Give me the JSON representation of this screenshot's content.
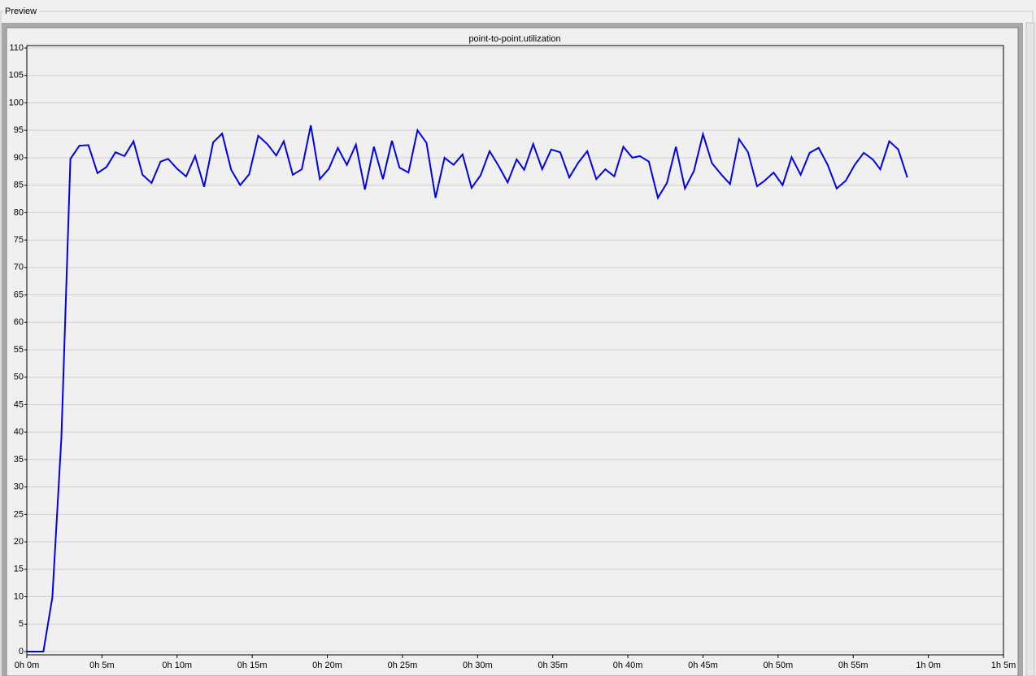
{
  "panel_title": "Preview",
  "chart_data": {
    "type": "line",
    "title": "point-to-point.utilization",
    "x": [
      0,
      1.1,
      1.7,
      2.3,
      2.9,
      3.5,
      4.1,
      4.7,
      5.3,
      5.9,
      6.5,
      7.1,
      7.7,
      8.3,
      8.9,
      9.4,
      10.0,
      10.6,
      11.2,
      11.8,
      12.4,
      13.0,
      13.6,
      14.2,
      14.8,
      15.4,
      16.0,
      16.6,
      17.1,
      17.7,
      18.3,
      18.9,
      19.5,
      20.1,
      20.7,
      21.3,
      21.9,
      22.5,
      23.1,
      23.7,
      24.3,
      24.8,
      25.4,
      26.0,
      26.6,
      27.2,
      27.8,
      28.4,
      29.0,
      29.6,
      30.2,
      30.8,
      31.4,
      32.0,
      32.6,
      33.1,
      33.7,
      34.3,
      34.9,
      35.5,
      36.1,
      36.7,
      37.3,
      37.9,
      38.5,
      39.1,
      39.7,
      40.3,
      40.8,
      41.4,
      42.0,
      42.6,
      43.2,
      43.8,
      44.4,
      45.0,
      45.6,
      46.2,
      46.8,
      47.4,
      48.0,
      48.6,
      49.1,
      49.7,
      50.3,
      50.9,
      51.5,
      52.1,
      52.7,
      53.3,
      53.9,
      54.5,
      55.1,
      55.7,
      56.3,
      56.8,
      57.4,
      58.0,
      58.6
    ],
    "series": [
      {
        "color": "#0000ee",
        "values": [
          0,
          0,
          9.9,
          39,
          89.8,
          92.2,
          92.3,
          87.2,
          88.3,
          91,
          90.3,
          93,
          86.9,
          85.4,
          89.3,
          89.8,
          88,
          86.6,
          90.3,
          84.7,
          92.8,
          94.4,
          87.8,
          85,
          87,
          94,
          92.5,
          90.4,
          93,
          86.9,
          87.9,
          95.9,
          86.1,
          88,
          91.8,
          88.7,
          92.4,
          84.2,
          92,
          86.1,
          93.1,
          88.2,
          87.3,
          95,
          92.7,
          82.7,
          90,
          88.7,
          90.6,
          84.5,
          86.8,
          91.2,
          88.5,
          85.5,
          89.7,
          87.8,
          92.5,
          87.9,
          91.5,
          91,
          86.4,
          89.1,
          91.2,
          86.1,
          87.9,
          86.6,
          92,
          90,
          90.3,
          89.3,
          82.7,
          85.4,
          92,
          84.4,
          87.6,
          94.3,
          89,
          87,
          85.2,
          93.4,
          91,
          84.8,
          85.8,
          87.3,
          85,
          90.1,
          86.9,
          90.9,
          91.8,
          88.7,
          84.4,
          85.8,
          88.7,
          90.9,
          89.7,
          87.9,
          93,
          91.5,
          86.4
        ]
      }
    ],
    "xlim": [
      0,
      65
    ],
    "xticks": [
      {
        "value": 0,
        "label": "0h 0m"
      },
      {
        "value": 5,
        "label": "0h 5m"
      },
      {
        "value": 10,
        "label": "0h 10m"
      },
      {
        "value": 15,
        "label": "0h 15m"
      },
      {
        "value": 20,
        "label": "0h 20m"
      },
      {
        "value": 25,
        "label": "0h 25m"
      },
      {
        "value": 30,
        "label": "0h 30m"
      },
      {
        "value": 35,
        "label": "0h 35m"
      },
      {
        "value": 40,
        "label": "0h 40m"
      },
      {
        "value": 45,
        "label": "0h 45m"
      },
      {
        "value": 50,
        "label": "0h 50m"
      },
      {
        "value": 55,
        "label": "0h 55m"
      },
      {
        "value": 60,
        "label": "1h 0m"
      },
      {
        "value": 65,
        "label": "1h 5m"
      }
    ],
    "ylim": [
      0,
      110
    ],
    "yticks": [
      0,
      5,
      10,
      15,
      20,
      25,
      30,
      35,
      40,
      45,
      50,
      55,
      60,
      65,
      70,
      75,
      80,
      85,
      90,
      95,
      100,
      105,
      110
    ],
    "grid": true
  }
}
